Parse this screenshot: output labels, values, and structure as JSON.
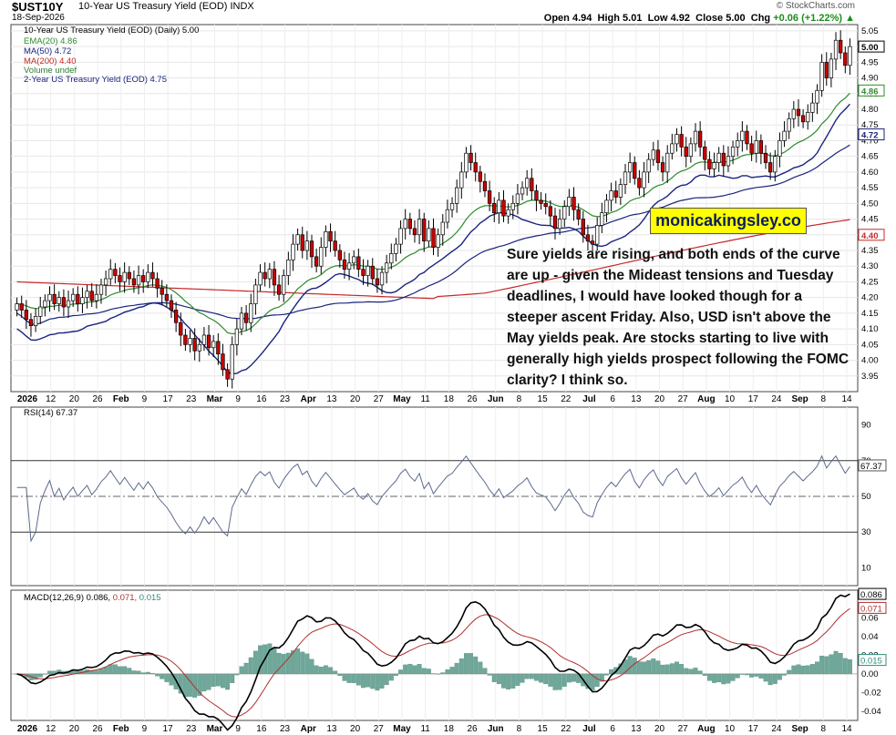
{
  "header": {
    "symbol": "$UST10Y",
    "description": "10-Year US Treasury Yield (EOD) INDX",
    "date": "18-Sep-2026",
    "credit": "© StockCharts.com",
    "open_label": "Open",
    "open": "4.94",
    "high_label": "High",
    "high": "5.01",
    "low_label": "Low",
    "low": "4.92",
    "close_label": "Close",
    "close": "5.00",
    "chg_label": "Chg",
    "chg": "+0.06 (+1.22%)",
    "chg_arrow": "▲"
  },
  "legend": {
    "main": "10-Year US Treasury Yield (EOD) (Daily) 5.00",
    "ema20": "EMA(20) 4.86",
    "ma50": "MA(50) 4.72",
    "ma200": "MA(200) 4.40",
    "volume": "Volume undef",
    "y2": "2-Year US Treasury Yield (EOD) 4.75",
    "rsi": "RSI(14) 67.37",
    "macd_prefix": "MACD(12,26,9)",
    "macd_v": "0.086,",
    "macd_s": "0.071,",
    "macd_h": "0.015"
  },
  "watermark": "monicakingsley.co",
  "annotation": "Sure yields are rising, and both ends of the curve are up - given the Mideast tensions and Tuesday deadlines, I would have looked though for a steeper ascent Friday. Also, USD isn't above the May yields peak. Are stocks starting to live with generally high yields prospect following the FOMC clarity? I think so.",
  "colors": {
    "up": "#ffffff",
    "down": "#cc0000",
    "ema20": "#2e8b2e",
    "ma50": "#1a237e",
    "ma200": "#c62828",
    "y2": "#1a237e",
    "rsi": "#5c6a8e",
    "macd": "#000000",
    "signal": "#b03030",
    "hist": "#6fa89a"
  },
  "chart_data": [
    {
      "type": "candlestick",
      "title": "$UST10Y 10-Year US Treasury Yield (EOD)",
      "ylim": [
        3.9,
        5.07
      ],
      "y_ticks": [
        "5.05",
        "5.00",
        "4.95",
        "4.90",
        "4.85",
        "4.80",
        "4.75",
        "4.70",
        "4.65",
        "4.60",
        "4.55",
        "4.50",
        "4.45",
        "4.40",
        "4.35",
        "4.30",
        "4.25",
        "4.20",
        "4.15",
        "4.10",
        "4.05",
        "4.00",
        "3.95"
      ],
      "x_tick_labels": [
        "2026",
        "12",
        "20",
        "26",
        "Feb",
        "9",
        "17",
        "23",
        "Mar",
        "9",
        "16",
        "23",
        "Apr",
        "13",
        "20",
        "27",
        "May",
        "11",
        "18",
        "26",
        "Jun",
        "8",
        "15",
        "22",
        "Jul",
        "6",
        "13",
        "20",
        "27",
        "Aug",
        "10",
        "17",
        "24",
        "Sep",
        "8",
        "14"
      ],
      "x_tick_bold": [
        "2026",
        "Feb",
        "Mar",
        "Apr",
        "May",
        "Jun",
        "Jul",
        "Aug",
        "Sep"
      ],
      "closes": [
        4.18,
        4.16,
        4.13,
        4.11,
        4.14,
        4.17,
        4.19,
        4.21,
        4.18,
        4.2,
        4.17,
        4.19,
        4.21,
        4.18,
        4.2,
        4.22,
        4.19,
        4.21,
        4.24,
        4.26,
        4.29,
        4.27,
        4.25,
        4.28,
        4.26,
        4.24,
        4.27,
        4.25,
        4.28,
        4.26,
        4.23,
        4.21,
        4.19,
        4.16,
        4.12,
        4.08,
        4.05,
        4.07,
        4.03,
        4.05,
        4.08,
        4.04,
        4.06,
        4.02,
        3.97,
        3.94,
        4.05,
        4.1,
        4.15,
        4.12,
        4.18,
        4.24,
        4.28,
        4.26,
        4.29,
        4.24,
        4.21,
        4.27,
        4.32,
        4.37,
        4.4,
        4.35,
        4.38,
        4.33,
        4.3,
        4.36,
        4.41,
        4.38,
        4.35,
        4.32,
        4.29,
        4.31,
        4.33,
        4.29,
        4.27,
        4.3,
        4.26,
        4.24,
        4.28,
        4.31,
        4.34,
        4.37,
        4.42,
        4.45,
        4.42,
        4.4,
        4.45,
        4.38,
        4.42,
        4.36,
        4.4,
        4.44,
        4.48,
        4.5,
        4.55,
        4.6,
        4.66,
        4.63,
        4.6,
        4.57,
        4.54,
        4.5,
        4.47,
        4.51,
        4.46,
        4.48,
        4.5,
        4.53,
        4.55,
        4.58,
        4.54,
        4.51,
        4.5,
        4.49,
        4.46,
        4.42,
        4.45,
        4.49,
        4.52,
        4.48,
        4.45,
        4.4,
        4.38,
        4.37,
        4.43,
        4.47,
        4.51,
        4.54,
        4.52,
        4.56,
        4.6,
        4.63,
        4.58,
        4.55,
        4.6,
        4.64,
        4.67,
        4.63,
        4.6,
        4.66,
        4.69,
        4.72,
        4.68,
        4.65,
        4.69,
        4.73,
        4.68,
        4.64,
        4.61,
        4.63,
        4.66,
        4.62,
        4.65,
        4.68,
        4.7,
        4.73,
        4.69,
        4.66,
        4.7,
        4.66,
        4.63,
        4.6,
        4.65,
        4.7,
        4.73,
        4.77,
        4.8,
        4.78,
        4.76,
        4.79,
        4.82,
        4.86,
        4.95,
        4.9,
        4.96,
        5.02,
        4.98,
        4.94,
        5.0
      ],
      "series": [
        {
          "name": "EMA(20) 4.86"
        },
        {
          "name": "MA(50) 4.72"
        },
        {
          "name": "MA(200) 4.40"
        },
        {
          "name": "2-Year US Treasury Yield (EOD) 4.75"
        }
      ]
    },
    {
      "type": "line",
      "title": "RSI(14) 67.37",
      "ylim": [
        0,
        100
      ],
      "y_ticks": [
        "90",
        "70",
        "50",
        "30",
        "10"
      ],
      "last_value": "67.37"
    },
    {
      "type": "line",
      "title": "MACD(12,26,9) 0.086, 0.071, 0.015",
      "ylim": [
        -0.05,
        0.09
      ],
      "y_ticks": [
        "0.06",
        "0.04",
        "0.02",
        "0.00",
        "-0.02",
        "-0.04"
      ],
      "last_values": {
        "macd": "0.086",
        "signal": "0.071",
        "histogram": "0.015"
      }
    }
  ]
}
